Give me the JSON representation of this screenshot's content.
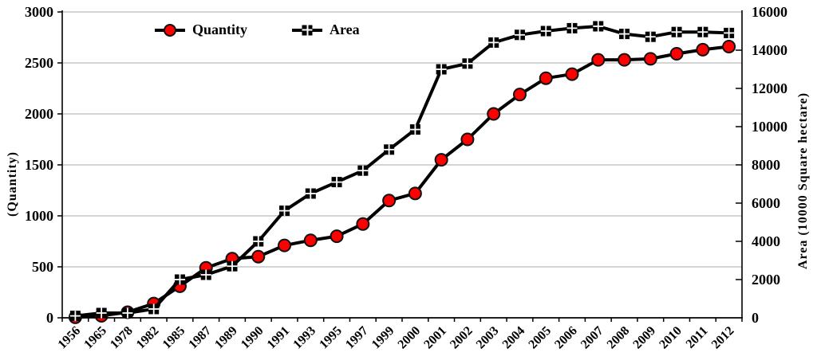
{
  "chart_data": {
    "type": "line",
    "title": "",
    "categories": [
      "1956",
      "1965",
      "1978",
      "1982",
      "1985",
      "1987",
      "1989",
      "1990",
      "1991",
      "1993",
      "1995",
      "1997",
      "1999",
      "2000",
      "2001",
      "2002",
      "2003",
      "2004",
      "2005",
      "2006",
      "2007",
      "2008",
      "2009",
      "2010",
      "2011",
      "2012"
    ],
    "series": [
      {
        "name": "Quantity",
        "axis": "left",
        "marker": "circle",
        "marker_color": "#ff0000",
        "line_color": "#000000",
        "values": [
          5,
          20,
          55,
          140,
          310,
          490,
          580,
          600,
          710,
          760,
          800,
          920,
          1150,
          1220,
          1550,
          1750,
          2000,
          2190,
          2350,
          2390,
          2530,
          2530,
          2540,
          2590,
          2630,
          2660
        ]
      },
      {
        "name": "Area",
        "axis": "right",
        "marker": "square-cross",
        "marker_color": "#000000",
        "line_color": "#000000",
        "values": [
          100,
          250,
          250,
          460,
          2000,
          2250,
          2700,
          4000,
          5600,
          6500,
          7100,
          7700,
          8800,
          9850,
          13000,
          13300,
          14400,
          14800,
          15000,
          15150,
          15250,
          14850,
          14700,
          14950,
          14950,
          14900
        ]
      }
    ],
    "left_axis": {
      "title": "(Quantity)",
      "min": 0,
      "max": 3000,
      "ticks": [
        0,
        500,
        1000,
        1500,
        2000,
        2500,
        3000
      ]
    },
    "right_axis": {
      "title": "Area (10000 Square hectare)",
      "min": 0,
      "max": 16000,
      "ticks": [
        0,
        2000,
        4000,
        6000,
        8000,
        10000,
        12000,
        14000,
        16000
      ]
    },
    "legend": {
      "position": "top",
      "entries": [
        "Quantity",
        "Area"
      ]
    },
    "grid": true,
    "colors": {
      "grid": "#a8a8a8",
      "axis": "#000000",
      "accent_red": "#ff0000",
      "marker_edge": "#111111"
    }
  }
}
